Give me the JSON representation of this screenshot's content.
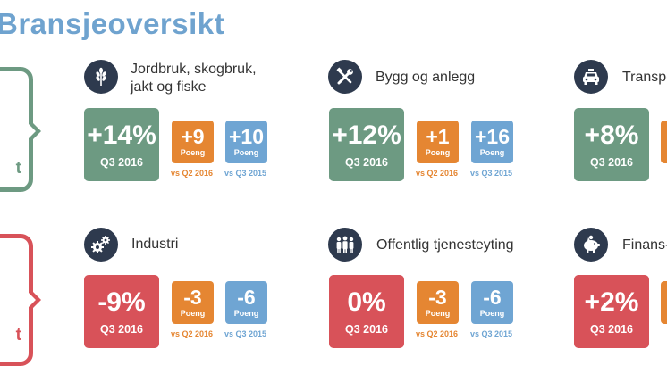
{
  "title": "Bransjeoversikt",
  "side": {
    "top_letter": "t",
    "top_color": "#6d9a82",
    "bottom_letter": "t",
    "bottom_color": "#d85259"
  },
  "sectors": [
    {
      "name_line1": "Jordbruk, skogbruk,",
      "name_line2": "jakt og fiske",
      "icon": "wheat-icon",
      "big_value": "+14%",
      "big_period": "Q3 2016",
      "big_color": "#6d9a82",
      "change1_value": "+9",
      "change1_label": "Poeng",
      "change1_vs": "vs Q2 2016",
      "change2_value": "+10",
      "change2_label": "Poeng",
      "change2_vs": "vs Q3 2015"
    },
    {
      "name_line1": "Bygg og anlegg",
      "name_line2": "",
      "icon": "tools-icon",
      "big_value": "+12%",
      "big_period": "Q3 2016",
      "big_color": "#6d9a82",
      "change1_value": "+1",
      "change1_label": "Poeng",
      "change1_vs": "vs Q2 2016",
      "change2_value": "+16",
      "change2_label": "Poeng",
      "change2_vs": "vs Q3 2015"
    },
    {
      "name_line1": "Transpo",
      "name_line2": "",
      "icon": "taxi-icon",
      "big_value": "+8%",
      "big_period": "Q3 2016",
      "big_color": "#6d9a82"
    },
    {
      "name_line1": "Industri",
      "name_line2": "",
      "icon": "gears-icon",
      "big_value": "-9%",
      "big_period": "Q3 2016",
      "big_color": "#d85259",
      "change1_value": "-3",
      "change1_label": "Poeng",
      "change1_vs": "vs Q2 2016",
      "change2_value": "-6",
      "change2_label": "Poeng",
      "change2_vs": "vs Q3 2015"
    },
    {
      "name_line1": "Offentlig tjenesteyting",
      "name_line2": "",
      "icon": "people-icon",
      "big_value": "0%",
      "big_period": "Q3 2016",
      "big_color": "#d85259",
      "change1_value": "-3",
      "change1_label": "Poeng",
      "change1_vs": "vs Q2 2016",
      "change2_value": "-6",
      "change2_label": "Poeng",
      "change2_vs": "vs Q3 2015"
    },
    {
      "name_line1": "Finans-",
      "name_line2": "",
      "icon": "piggy-bank-icon",
      "big_value": "+2%",
      "big_period": "Q3 2016",
      "big_color": "#d85259"
    }
  ]
}
